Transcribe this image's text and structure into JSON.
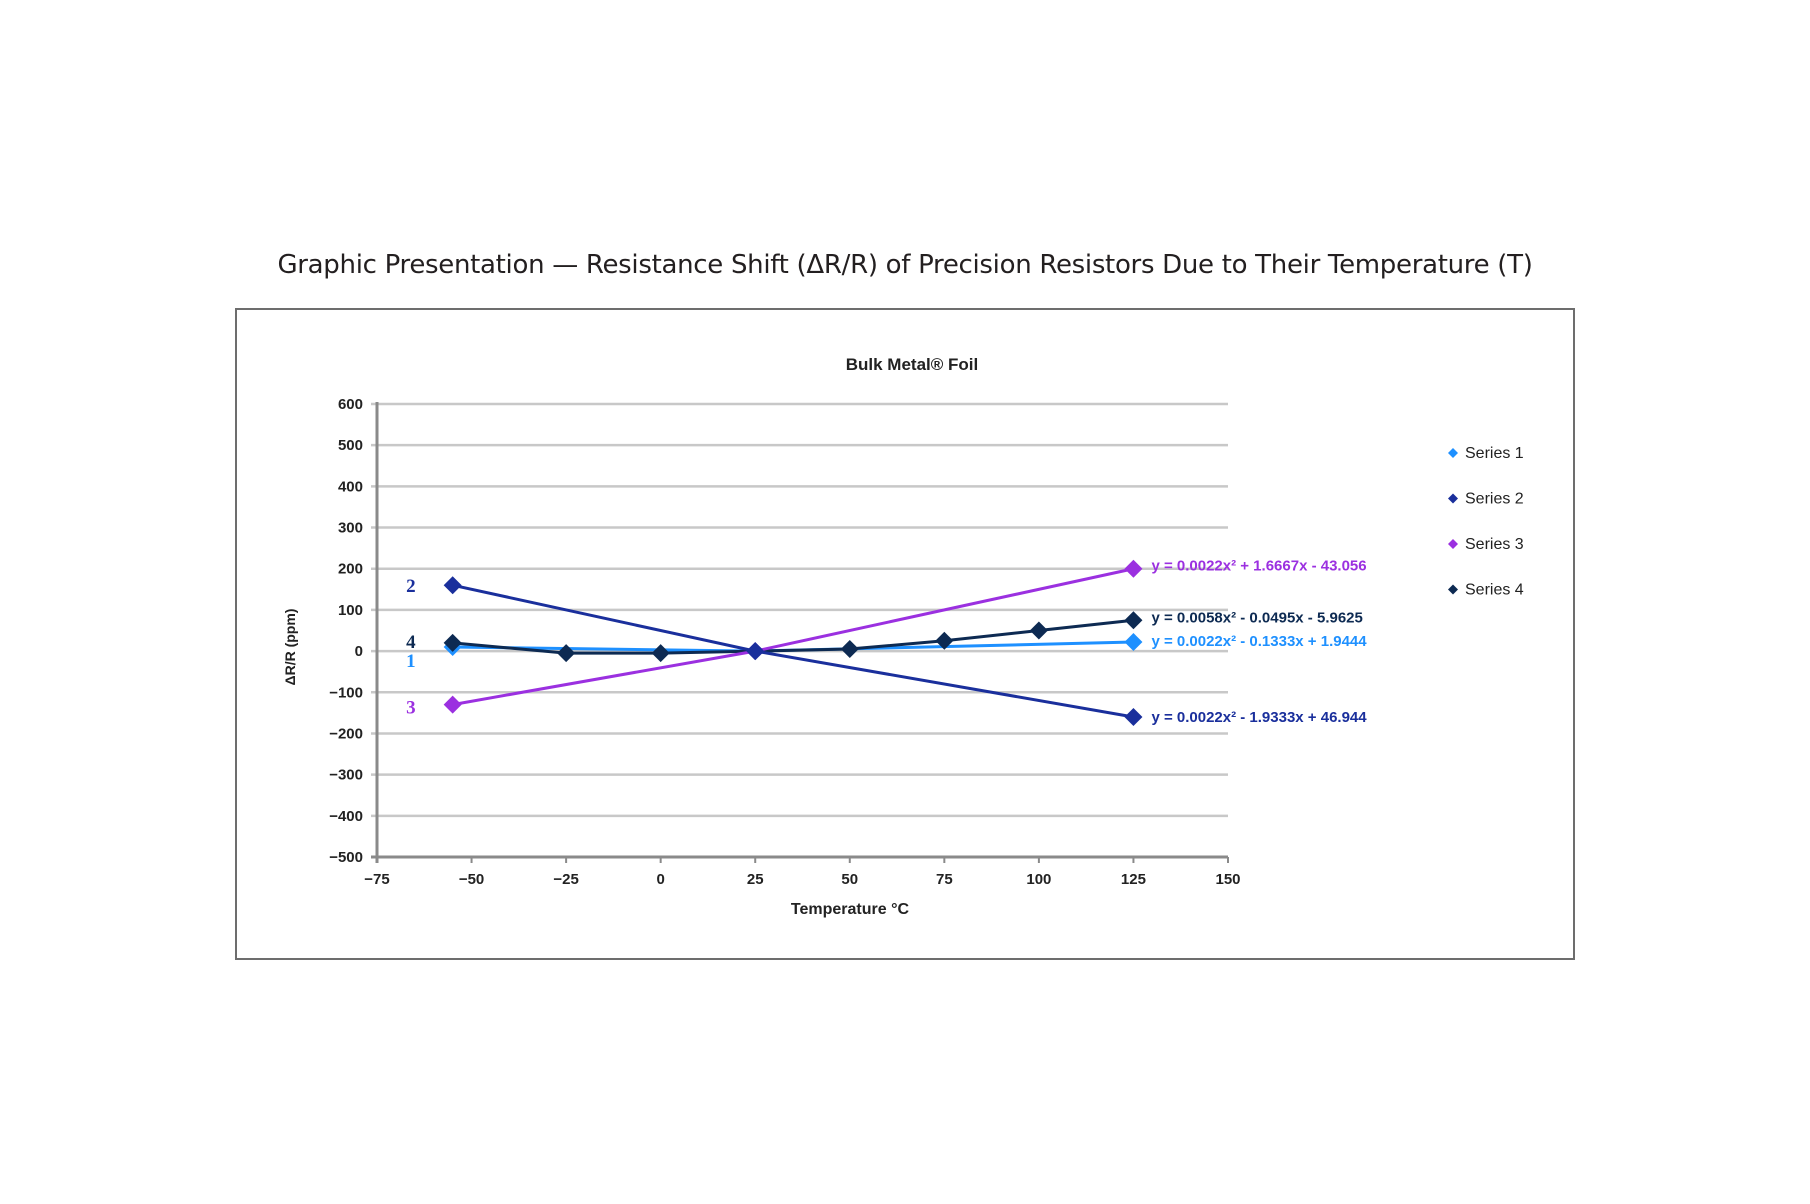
{
  "page": {
    "title": "Graphic Presentation — Resistance Shift (ΔR/R) of Precision Resistors Due to Their Temperature (T)"
  },
  "chart_data": {
    "type": "line",
    "title": "Bulk Metal® Foil",
    "xlabel": "Temperature °C",
    "ylabel": "ΔR/R (ppm)",
    "xlim": [
      -75,
      150
    ],
    "ylim": [
      -500,
      600
    ],
    "xticks": [
      -75,
      -50,
      -25,
      0,
      25,
      50,
      75,
      100,
      125,
      150
    ],
    "xtick_labels": [
      "−75",
      "−50",
      "−25",
      "0",
      "25",
      "50",
      "75",
      "100",
      "125",
      "150"
    ],
    "yticks": [
      600,
      500,
      400,
      300,
      200,
      100,
      0,
      -100,
      -200,
      -300,
      -400,
      -500
    ],
    "ytick_labels": [
      "600",
      "500",
      "400",
      "300",
      "200",
      "100",
      "0",
      "−100",
      "−200",
      "−300",
      "−400",
      "−500"
    ],
    "grid": "horizontal",
    "legend_position": "right",
    "series": [
      {
        "name": "Series 1",
        "curve_label": "1",
        "color": "#1e90ff",
        "x": [
          -55,
          25,
          125
        ],
        "values": [
          10,
          0,
          22
        ],
        "trendline": "y = 0.0022x² - 0.1333x + 1.9444"
      },
      {
        "name": "Series 2",
        "curve_label": "2",
        "color": "#1a2f9c",
        "x": [
          -55,
          25,
          125
        ],
        "values": [
          160,
          0,
          -160
        ],
        "trendline": "y = 0.0022x² - 1.9333x + 46.944"
      },
      {
        "name": "Series 3",
        "curve_label": "3",
        "color": "#9b30e0",
        "x": [
          -55,
          25,
          125
        ],
        "values": [
          -130,
          0,
          200
        ],
        "trendline": "y = 0.0022x² + 1.6667x - 43.056"
      },
      {
        "name": "Series 4",
        "curve_label": "4",
        "color": "#0d2a52",
        "x": [
          -55,
          -25,
          0,
          25,
          50,
          75,
          100,
          125
        ],
        "values": [
          20,
          -5,
          -5,
          0,
          5,
          25,
          50,
          75
        ],
        "trendline": "y = 0.0058x² - 0.0495x - 5.9625"
      }
    ]
  }
}
